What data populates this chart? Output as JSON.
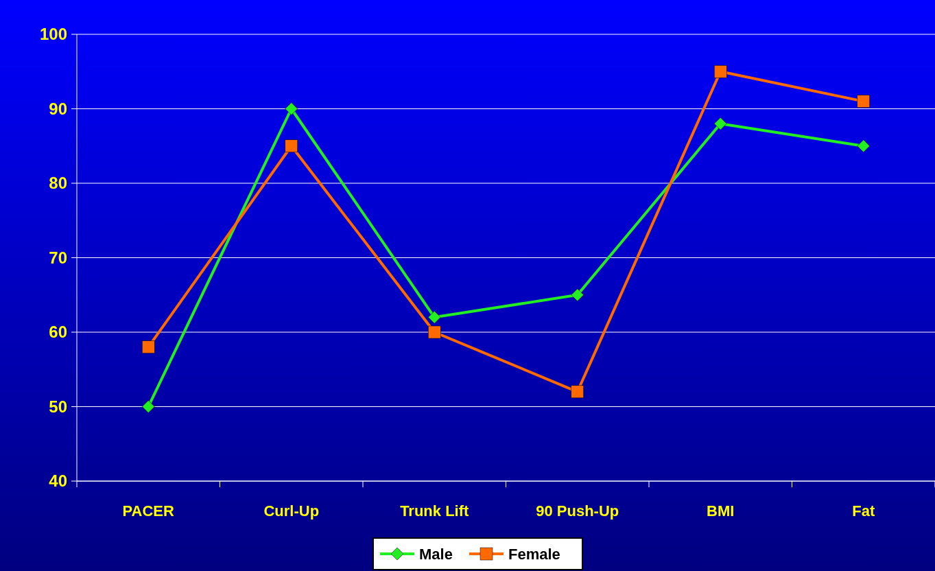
{
  "chart_data": {
    "type": "line",
    "categories": [
      "PACER",
      "Curl-Up",
      "Trunk Lift",
      "90 Push-Up",
      "BMI",
      "Fat"
    ],
    "series": [
      {
        "name": "Male",
        "color": "#22ee22",
        "marker": "diamond",
        "values": [
          50,
          90,
          62,
          65,
          88,
          85
        ]
      },
      {
        "name": "Female",
        "color": "#ff6a00",
        "marker": "square",
        "values": [
          58,
          85,
          60,
          52,
          95,
          91
        ]
      }
    ],
    "ylim": [
      40,
      100
    ],
    "yticks": [
      40,
      50,
      60,
      70,
      80,
      90,
      100
    ],
    "grid": "y",
    "legend": "bottom"
  }
}
